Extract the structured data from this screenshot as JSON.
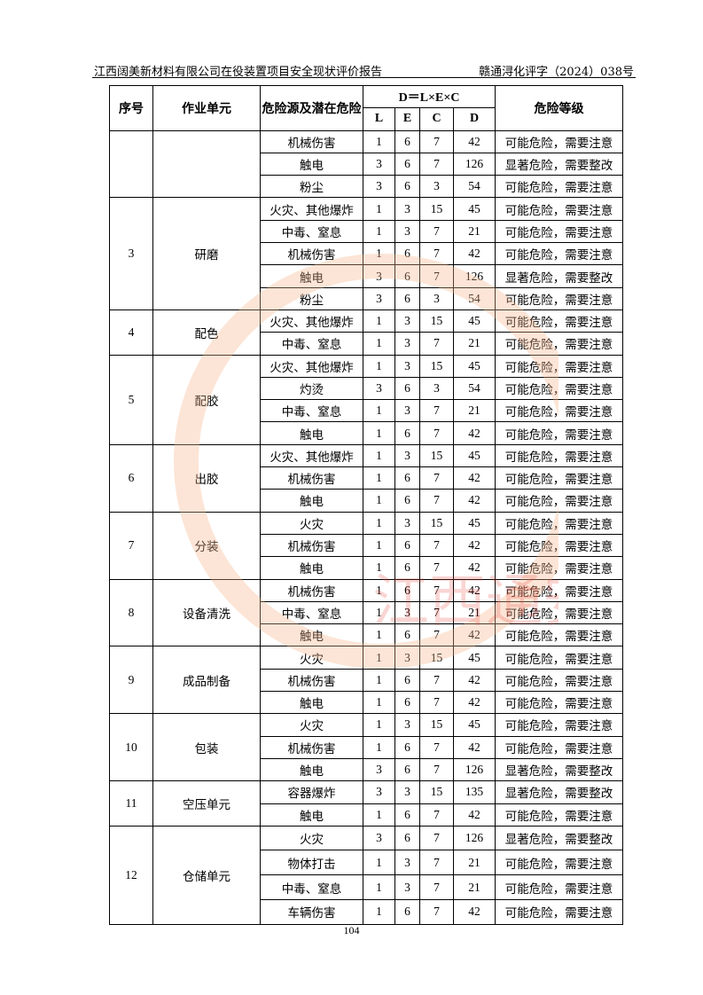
{
  "header": {
    "title": "江西阔美新材料有限公司在役装置项目安全现状评价报告",
    "doc_no": "赣通浔化评字（2024）038号"
  },
  "table": {
    "columns": {
      "no": "序号",
      "unit": "作业单元",
      "hazard": "危险源及潜在危险",
      "formula": "D＝L×E×C",
      "L": "L",
      "E": "E",
      "C": "C",
      "D": "D",
      "level": "危险等级"
    },
    "groups": [
      {
        "no": "",
        "unit": "",
        "rows": [
          [
            "机械伤害",
            "1",
            "6",
            "7",
            "42",
            "可能危险，需要注意"
          ],
          [
            "触电",
            "3",
            "6",
            "7",
            "126",
            "显著危险，需要整改"
          ],
          [
            "粉尘",
            "3",
            "6",
            "3",
            "54",
            "可能危险，需要注意"
          ]
        ]
      },
      {
        "no": "3",
        "unit": "研磨",
        "rows": [
          [
            "火灾、其他爆炸",
            "1",
            "3",
            "15",
            "45",
            "可能危险，需要注意"
          ],
          [
            "中毒、窒息",
            "1",
            "3",
            "7",
            "21",
            "可能危险，需要注意"
          ],
          [
            "机械伤害",
            "1",
            "6",
            "7",
            "42",
            "可能危险，需要注意"
          ],
          [
            "触电",
            "3",
            "6",
            "7",
            "126",
            "显著危险，需要整改"
          ],
          [
            "粉尘",
            "3",
            "6",
            "3",
            "54",
            "可能危险，需要注意"
          ]
        ]
      },
      {
        "no": "4",
        "unit": "配色",
        "rows": [
          [
            "火灾、其他爆炸",
            "1",
            "3",
            "15",
            "45",
            "可能危险，需要注意"
          ],
          [
            "中毒、窒息",
            "1",
            "3",
            "7",
            "21",
            "可能危险，需要注意"
          ]
        ]
      },
      {
        "no": "5",
        "unit": "配胶",
        "rows": [
          [
            "火灾、其他爆炸",
            "1",
            "3",
            "15",
            "45",
            "可能危险，需要注意"
          ],
          [
            "灼烫",
            "3",
            "6",
            "3",
            "54",
            "可能危险，需要注意"
          ],
          [
            "中毒、窒息",
            "1",
            "3",
            "7",
            "21",
            "可能危险，需要注意"
          ],
          [
            "触电",
            "1",
            "6",
            "7",
            "42",
            "可能危险，需要注意"
          ]
        ]
      },
      {
        "no": "6",
        "unit": "出胶",
        "rows": [
          [
            "火灾、其他爆炸",
            "1",
            "3",
            "15",
            "45",
            "可能危险，需要注意"
          ],
          [
            "机械伤害",
            "1",
            "6",
            "7",
            "42",
            "可能危险，需要注意"
          ],
          [
            "触电",
            "1",
            "6",
            "7",
            "42",
            "可能危险，需要注意"
          ]
        ]
      },
      {
        "no": "7",
        "unit": "分装",
        "rows": [
          [
            "火灾",
            "1",
            "3",
            "15",
            "45",
            "可能危险，需要注意"
          ],
          [
            "机械伤害",
            "1",
            "6",
            "7",
            "42",
            "可能危险，需要注意"
          ],
          [
            "触电",
            "1",
            "6",
            "7",
            "42",
            "可能危险，需要注意"
          ]
        ]
      },
      {
        "no": "8",
        "unit": "设备清洗",
        "rows": [
          [
            "机械伤害",
            "1",
            "6",
            "7",
            "42",
            "可能危险，需要注意"
          ],
          [
            "中毒、窒息",
            "1",
            "3",
            "7",
            "21",
            "可能危险，需要注意"
          ],
          [
            "触电",
            "1",
            "6",
            "7",
            "42",
            "可能危险，需要注意"
          ]
        ]
      },
      {
        "no": "9",
        "unit": "成品制备",
        "rows": [
          [
            "火灾",
            "1",
            "3",
            "15",
            "45",
            "可能危险，需要注意"
          ],
          [
            "机械伤害",
            "1",
            "6",
            "7",
            "42",
            "可能危险，需要注意"
          ],
          [
            "触电",
            "1",
            "6",
            "7",
            "42",
            "可能危险，需要注意"
          ]
        ]
      },
      {
        "no": "10",
        "unit": "包装",
        "rows": [
          [
            "火灾",
            "1",
            "3",
            "15",
            "45",
            "可能危险，需要注意"
          ],
          [
            "机械伤害",
            "1",
            "6",
            "7",
            "42",
            "可能危险，需要注意"
          ],
          [
            "触电",
            "3",
            "6",
            "7",
            "126",
            "显著危险，需要整改"
          ]
        ]
      },
      {
        "no": "11",
        "unit": "空压单元",
        "rows": [
          [
            "容器爆炸",
            "3",
            "3",
            "15",
            "135",
            "显著危险，需要整改"
          ],
          [
            "触电",
            "1",
            "6",
            "7",
            "42",
            "可能危险，需要注意"
          ]
        ]
      },
      {
        "no": "12",
        "unit": "仓储单元",
        "tall": true,
        "rows": [
          [
            "火灾",
            "3",
            "6",
            "7",
            "126",
            "显著危险，需要整改"
          ],
          [
            "物体打击",
            "1",
            "3",
            "7",
            "21",
            "可能危险，需要注意"
          ],
          [
            "中毒、窒息",
            "1",
            "3",
            "7",
            "21",
            "可能危险，需要注意"
          ],
          [
            "车辆伤害",
            "1",
            "6",
            "7",
            "42",
            "可能危险，需要注意"
          ]
        ]
      }
    ]
  },
  "footer": {
    "page": "104"
  },
  "watermark": {
    "text": "江西通安",
    "color": "#f08a4b"
  }
}
